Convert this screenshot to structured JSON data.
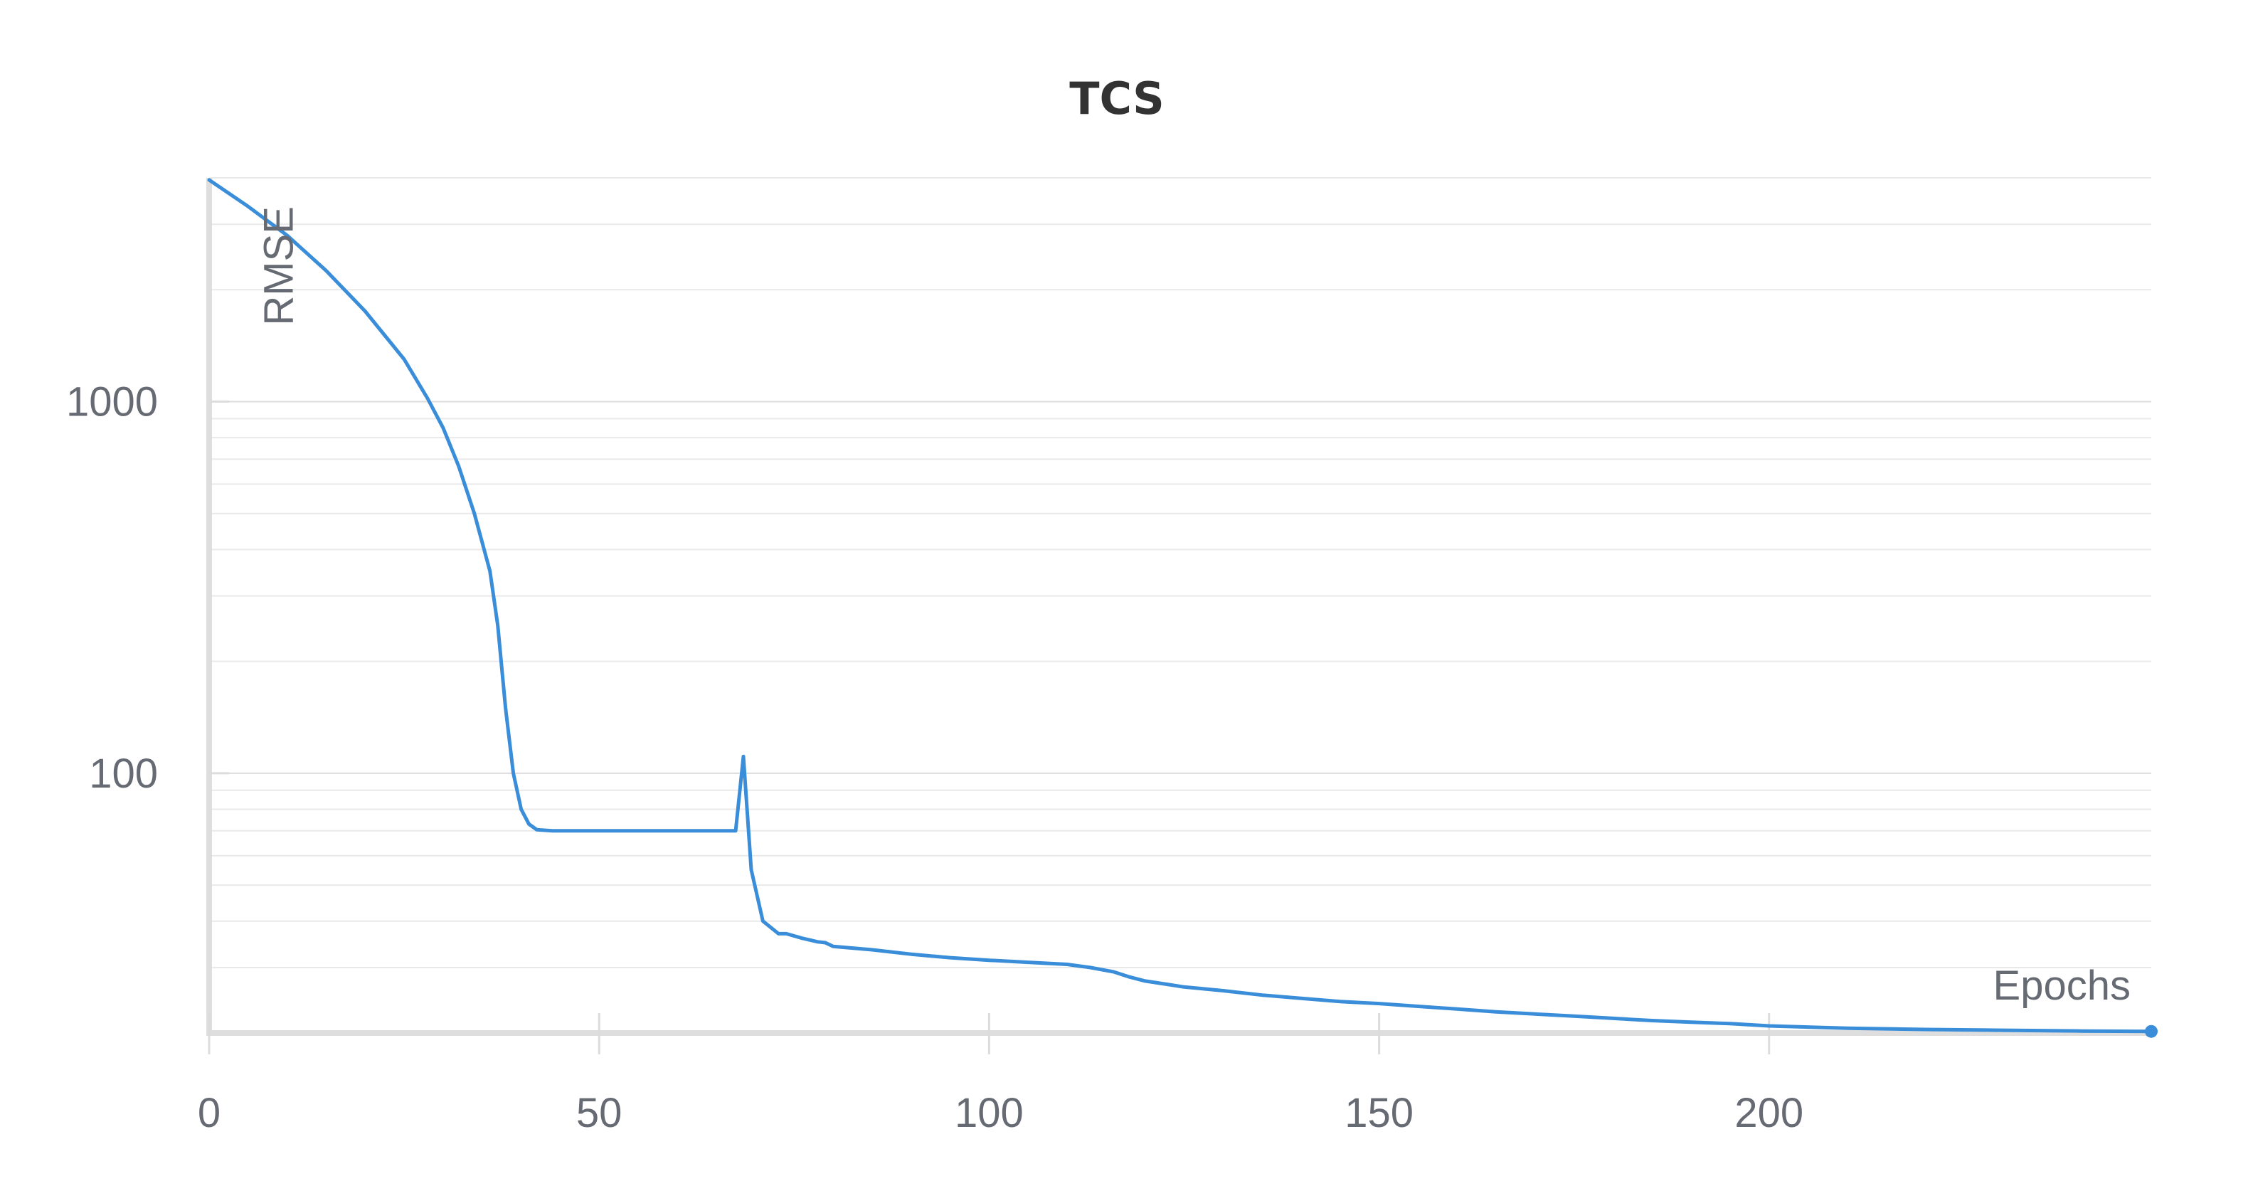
{
  "chart_data": {
    "type": "line",
    "title": "TCS",
    "xlabel": "Epochs",
    "ylabel": "RMSE",
    "yscale": "log",
    "xlim": [
      0,
      249
    ],
    "ylim": [
      20,
      4000
    ],
    "x_ticks": [
      0,
      50,
      100,
      150,
      200
    ],
    "y_ticks": [
      100,
      1000
    ],
    "grid": true,
    "legend": "none",
    "series": [
      {
        "color": "#3a8dd8",
        "points": [
          [
            0,
            3950
          ],
          [
            5,
            3350
          ],
          [
            10,
            2800
          ],
          [
            15,
            2250
          ],
          [
            20,
            1750
          ],
          [
            25,
            1300
          ],
          [
            28,
            1020
          ],
          [
            30,
            850
          ],
          [
            32,
            670
          ],
          [
            34,
            500
          ],
          [
            36,
            350
          ],
          [
            37,
            250
          ],
          [
            38,
            150
          ],
          [
            39,
            100
          ],
          [
            40,
            80
          ],
          [
            41,
            73
          ],
          [
            42,
            70.5
          ],
          [
            44,
            70
          ],
          [
            50,
            70
          ],
          [
            60,
            70
          ],
          [
            67,
            70
          ],
          [
            67.5,
            70
          ],
          [
            68.5,
            111
          ],
          [
            69.5,
            55
          ],
          [
            71,
            40
          ],
          [
            73,
            37
          ],
          [
            74,
            37
          ],
          [
            76,
            36
          ],
          [
            78,
            35.2
          ],
          [
            79,
            35
          ],
          [
            80,
            34.2
          ],
          [
            85,
            33.5
          ],
          [
            90,
            32.6
          ],
          [
            95,
            31.9
          ],
          [
            100,
            31.4
          ],
          [
            105,
            31
          ],
          [
            110,
            30.6
          ],
          [
            113,
            30
          ],
          [
            116,
            29.2
          ],
          [
            118,
            28.3
          ],
          [
            120,
            27.6
          ],
          [
            123,
            27
          ],
          [
            125,
            26.6
          ],
          [
            130,
            26
          ],
          [
            135,
            25.3
          ],
          [
            140,
            24.8
          ],
          [
            145,
            24.3
          ],
          [
            150,
            24
          ],
          [
            155,
            23.6
          ],
          [
            160,
            23.2
          ],
          [
            165,
            22.8
          ],
          [
            170,
            22.5
          ],
          [
            175,
            22.2
          ],
          [
            180,
            21.9
          ],
          [
            185,
            21.6
          ],
          [
            190,
            21.4
          ],
          [
            195,
            21.2
          ],
          [
            200,
            20.9
          ],
          [
            210,
            20.6
          ],
          [
            220,
            20.45
          ],
          [
            230,
            20.35
          ],
          [
            240,
            20.25
          ],
          [
            249,
            20.2
          ]
        ]
      }
    ]
  }
}
